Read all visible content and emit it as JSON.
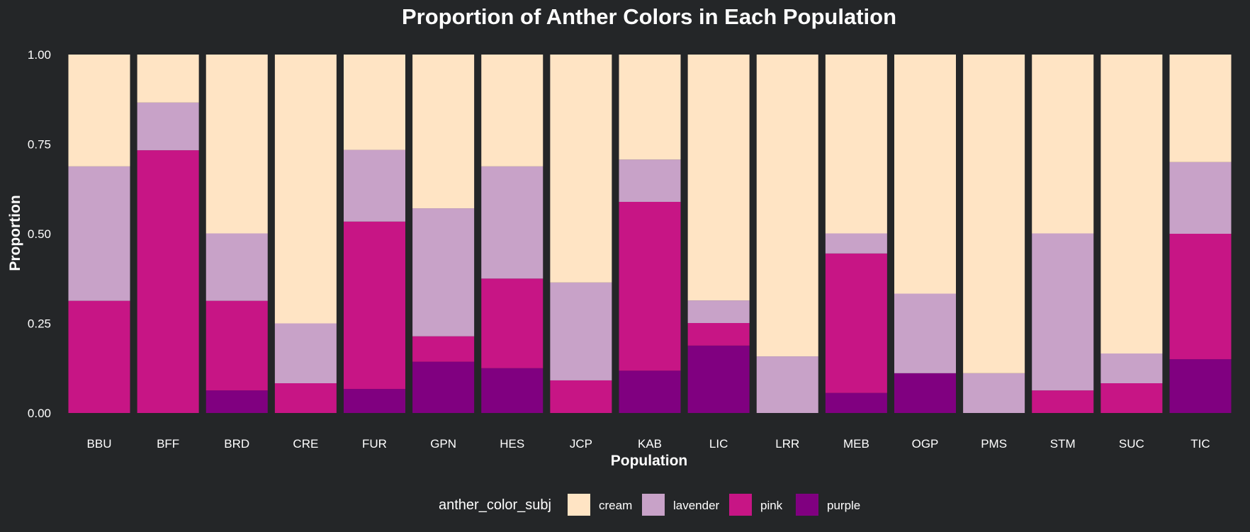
{
  "chart_data": {
    "type": "bar",
    "stacked": true,
    "title": "Proportion of Anther Colors in Each Population",
    "xlabel": "Population",
    "ylabel": "Proportion",
    "ylim": [
      0,
      1
    ],
    "y_ticks": [
      "0.00",
      "0.25",
      "0.50",
      "0.75",
      "1.00"
    ],
    "grid": false,
    "background": "#242628",
    "legend": {
      "title": "anther_color_subj",
      "position": "bottom"
    },
    "categories": [
      "BBU",
      "BFF",
      "BRD",
      "CRE",
      "FUR",
      "GPN",
      "HES",
      "JCP",
      "KAB",
      "LIC",
      "LRR",
      "MEB",
      "OGP",
      "PMS",
      "STM",
      "SUC",
      "TIC"
    ],
    "series": [
      {
        "name": "purple",
        "color": "#800080",
        "values": [
          0,
          0,
          0.063,
          0,
          0.067,
          0.143,
          0.125,
          0,
          0.118,
          0.188,
          0,
          0.056,
          0.111,
          0,
          0,
          0,
          0.15
        ]
      },
      {
        "name": "pink",
        "color": "#C71585",
        "values": [
          0.313,
          0.733,
          0.25,
          0.083,
          0.467,
          0.071,
          0.25,
          0.091,
          0.471,
          0.063,
          0,
          0.389,
          0,
          0,
          0.063,
          0.083,
          0.35
        ]
      },
      {
        "name": "lavender",
        "color": "#C8A2C8",
        "values": [
          0.375,
          0.133,
          0.188,
          0.167,
          0.2,
          0.357,
          0.313,
          0.273,
          0.118,
          0.063,
          0.158,
          0.056,
          0.222,
          0.111,
          0.438,
          0.083,
          0.2
        ]
      },
      {
        "name": "cream",
        "color": "#FFE4C4",
        "values": [
          0.312,
          0.134,
          0.499,
          0.75,
          0.266,
          0.429,
          0.312,
          0.636,
          0.293,
          0.686,
          0.842,
          0.499,
          0.667,
          0.889,
          0.499,
          0.834,
          0.3
        ]
      }
    ],
    "legend_order": [
      "cream",
      "lavender",
      "pink",
      "purple"
    ]
  }
}
